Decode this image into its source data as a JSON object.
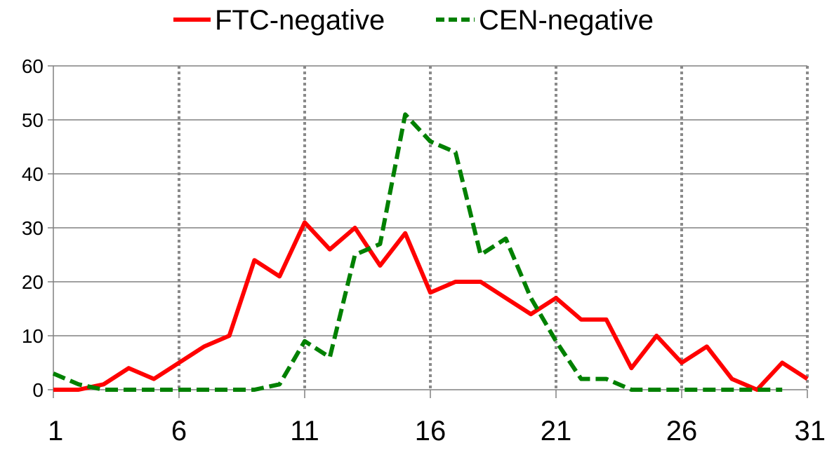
{
  "chart_data": {
    "type": "line",
    "title": "",
    "xlabel": "",
    "ylabel": "",
    "xlim": [
      1,
      31
    ],
    "ylim": [
      0,
      60
    ],
    "x_ticks": [
      1,
      6,
      11,
      16,
      21,
      26,
      31
    ],
    "x_tick_labels": [
      "1",
      "6",
      "11",
      "16",
      "21",
      "26",
      "31"
    ],
    "y_ticks": [
      0,
      10,
      20,
      30,
      40,
      50,
      60
    ],
    "y_tick_labels": [
      "0",
      "10",
      "20",
      "30",
      "40",
      "50",
      "60"
    ],
    "grid": {
      "horizontal": true,
      "vertical": true,
      "vertical_style": "dotted",
      "horizontal_color": "#808080",
      "vertical_color": "#8a8a8a"
    },
    "legend": {
      "position": "top-center"
    },
    "x": [
      1,
      2,
      3,
      4,
      5,
      6,
      7,
      8,
      9,
      10,
      11,
      12,
      13,
      14,
      15,
      16,
      17,
      18,
      19,
      20,
      21,
      22,
      23,
      24,
      25,
      26,
      27,
      28,
      29,
      30,
      31
    ],
    "series": [
      {
        "name": "FTC-negative",
        "color": "#ff0000",
        "style": "solid",
        "values": [
          0,
          0,
          1,
          4,
          2,
          5,
          8,
          10,
          24,
          21,
          31,
          26,
          30,
          23,
          29,
          18,
          20,
          20,
          17,
          14,
          17,
          13,
          13,
          4,
          10,
          5,
          8,
          2,
          0,
          5,
          2
        ]
      },
      {
        "name": "CEN-negative",
        "color": "#008000",
        "style": "dashed",
        "values": [
          3,
          1,
          0,
          0,
          0,
          0,
          0,
          0,
          0,
          1,
          9,
          6,
          25,
          27,
          51,
          46,
          44,
          25,
          28,
          17,
          9,
          2,
          2,
          0,
          0,
          0,
          0,
          0,
          0,
          0,
          null
        ]
      }
    ]
  }
}
